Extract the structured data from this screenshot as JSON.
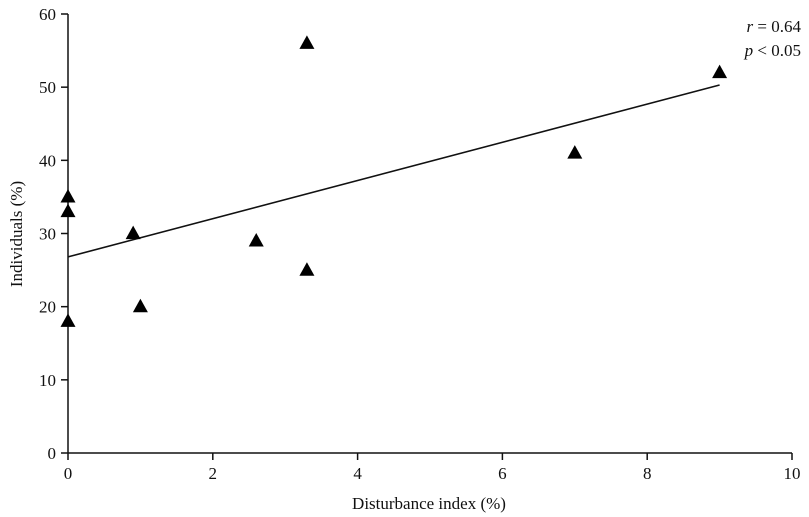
{
  "chart_data": {
    "type": "scatter",
    "xlabel": "Disturbance index (%)",
    "ylabel": "Individuals (%)",
    "xlim": [
      0,
      10
    ],
    "ylim": [
      0,
      60
    ],
    "x_ticks": [
      0,
      2,
      4,
      6,
      8,
      10
    ],
    "y_ticks": [
      0,
      10,
      20,
      30,
      40,
      50,
      60
    ],
    "grid": false,
    "series": [
      {
        "marker": "triangle",
        "color": "#000000",
        "points": [
          {
            "x": 0,
            "y": 35
          },
          {
            "x": 0,
            "y": 33
          },
          {
            "x": 0,
            "y": 18
          },
          {
            "x": 0.9,
            "y": 30
          },
          {
            "x": 1.0,
            "y": 20
          },
          {
            "x": 2.6,
            "y": 29
          },
          {
            "x": 3.3,
            "y": 56
          },
          {
            "x": 3.3,
            "y": 25
          },
          {
            "x": 7.0,
            "y": 41
          },
          {
            "x": 9.0,
            "y": 52
          }
        ]
      }
    ],
    "trendline": {
      "x": [
        0,
        9
      ],
      "y": [
        26.8,
        50.3
      ]
    },
    "annotations": {
      "r_symbol": "r",
      "r_text": " = 0.64",
      "p_symbol": "p",
      "p_text": " < 0.05"
    }
  }
}
